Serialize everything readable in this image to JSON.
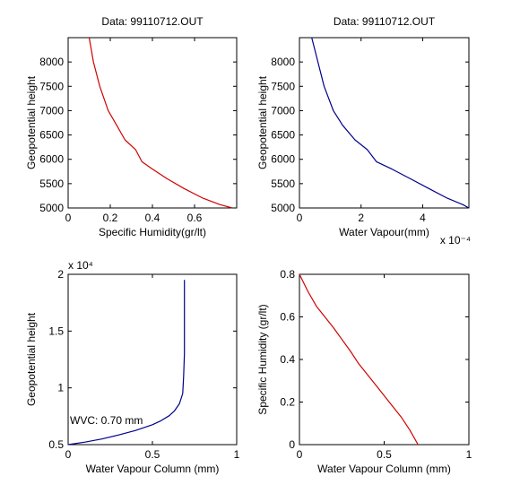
{
  "figure": {
    "background": "#ffffff",
    "axes_color": "#000000"
  },
  "chart_data": [
    {
      "type": "line",
      "title": "Data: 99110712.OUT",
      "xlabel": "Specific Humidity(gr/lt)",
      "ylabel": "Geopotential height",
      "xlim": [
        0,
        0.8
      ],
      "ylim": [
        5000,
        8500
      ],
      "xticks": [
        0,
        0.2,
        0.4,
        0.6
      ],
      "xtick_labels": [
        "0",
        "0.2",
        "0.4",
        "0.6"
      ],
      "yticks": [
        5000,
        5500,
        6000,
        6500,
        7000,
        7500,
        8000
      ],
      "ytick_labels": [
        "5000",
        "5500",
        "6000",
        "6500",
        "7000",
        "7500",
        "8000"
      ],
      "x_exponent": "",
      "y_exponent": "",
      "color": "#d00000",
      "annotation": "",
      "series": [
        {
          "x": [
            0.1,
            0.12,
            0.15,
            0.19,
            0.23,
            0.27,
            0.32,
            0.35,
            0.4,
            0.47,
            0.55,
            0.64,
            0.72,
            0.78
          ],
          "y": [
            8500,
            8000,
            7500,
            7000,
            6700,
            6400,
            6200,
            5950,
            5800,
            5600,
            5400,
            5200,
            5070,
            5000
          ]
        }
      ]
    },
    {
      "type": "line",
      "title": "Data: 99110712.OUT",
      "xlabel": "Water Vapour(mm)",
      "ylabel": "Geopotential height",
      "xlim": [
        0,
        0.00055
      ],
      "ylim": [
        5000,
        8500
      ],
      "xticks": [
        0,
        0.0002,
        0.0004
      ],
      "xtick_labels": [
        "0",
        "2",
        "4"
      ],
      "yticks": [
        5000,
        5500,
        6000,
        6500,
        7000,
        7500,
        8000
      ],
      "ytick_labels": [
        "5000",
        "5500",
        "6000",
        "6500",
        "7000",
        "7500",
        "8000"
      ],
      "x_exponent": "x 10⁻⁴",
      "y_exponent": "",
      "color": "#00008b",
      "annotation": "",
      "series": [
        {
          "x": [
            4e-05,
            6e-05,
            8e-05,
            0.00011,
            0.00014,
            0.00018,
            0.00022,
            0.00025,
            0.0003,
            0.00036,
            0.00042,
            0.00048,
            0.00053,
            0.00055
          ],
          "y": [
            8500,
            8000,
            7500,
            7000,
            6700,
            6400,
            6200,
            5950,
            5800,
            5600,
            5400,
            5200,
            5070,
            5000
          ]
        }
      ]
    },
    {
      "type": "line",
      "title": "",
      "xlabel": "Water Vapour Column (mm)",
      "ylabel": "Geopotential height",
      "xlim": [
        0,
        1
      ],
      "ylim": [
        5000,
        20000
      ],
      "xticks": [
        0,
        0.5,
        1
      ],
      "xtick_labels": [
        "0",
        "0.5",
        "1"
      ],
      "yticks": [
        5000,
        10000,
        15000,
        20000
      ],
      "ytick_labels": [
        "0.5",
        "1",
        "1.5",
        "2"
      ],
      "x_exponent": "",
      "y_exponent": "x 10⁴",
      "color": "#00008b",
      "annotation": "WVC: 0.70 mm",
      "annotation_color": "#d00000",
      "series": [
        {
          "x": [
            0,
            0.1,
            0.2,
            0.3,
            0.4,
            0.5,
            0.55,
            0.6,
            0.63,
            0.66,
            0.68,
            0.685,
            0.69,
            0.69
          ],
          "y": [
            5000,
            5220,
            5500,
            5850,
            6250,
            6750,
            7100,
            7550,
            7950,
            8600,
            9500,
            11000,
            13000,
            19500
          ]
        }
      ]
    },
    {
      "type": "line",
      "title": "",
      "xlabel": "Water Vapour Column (mm)",
      "ylabel": "Specific Humidity (gr/lt)",
      "xlim": [
        0,
        1
      ],
      "ylim": [
        0,
        0.8
      ],
      "xticks": [
        0,
        0.5,
        1
      ],
      "xtick_labels": [
        "0",
        "0.5",
        "1"
      ],
      "yticks": [
        0,
        0.2,
        0.4,
        0.6,
        0.8
      ],
      "ytick_labels": [
        "0",
        "0.2",
        "0.4",
        "0.6",
        "0.8"
      ],
      "x_exponent": "",
      "y_exponent": "",
      "color": "#d00000",
      "annotation": "",
      "series": [
        {
          "x": [
            0,
            0.05,
            0.1,
            0.2,
            0.3,
            0.35,
            0.4,
            0.45,
            0.5,
            0.55,
            0.6,
            0.65,
            0.7
          ],
          "y": [
            0.8,
            0.72,
            0.65,
            0.55,
            0.44,
            0.38,
            0.33,
            0.28,
            0.23,
            0.18,
            0.13,
            0.07,
            0.0
          ]
        }
      ]
    }
  ]
}
